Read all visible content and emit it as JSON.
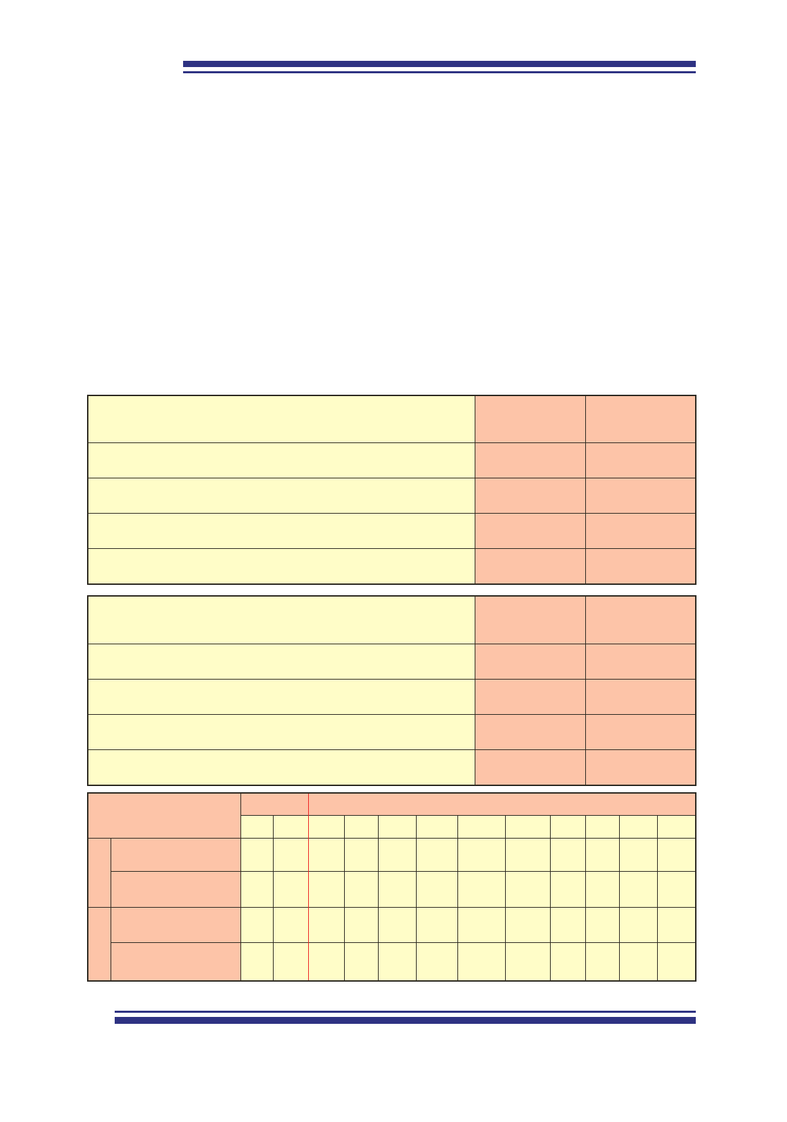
{
  "colors": {
    "rule": "#2E3282",
    "label_fill": "#FFFDC8",
    "value_fill": "#FDC4A8",
    "border": "#2B2820",
    "accent_line": "#EE2222"
  },
  "table_1": {
    "rows": 5,
    "columns": 3
  },
  "table_2": {
    "rows": 5,
    "columns": 3
  },
  "table_3": {
    "header_columns": 12,
    "body_rows": 4,
    "row_groups": 2
  }
}
